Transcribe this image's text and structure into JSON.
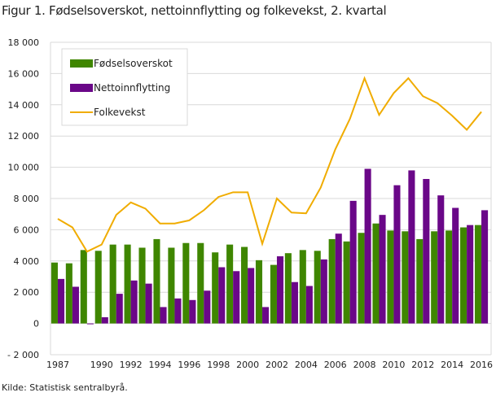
{
  "chart_data": {
    "type": "bar",
    "title": "Figur 1. Fødselsoverskot, nettoinnflytting og folkevekst, 2. kvartal",
    "source": "Kilde: Statistisk sentralbyrå.",
    "categories": [
      1987,
      1988,
      1989,
      1990,
      1991,
      1992,
      1993,
      1994,
      1995,
      1996,
      1997,
      1998,
      1999,
      2000,
      2001,
      2002,
      2003,
      2004,
      2005,
      2006,
      2007,
      2008,
      2009,
      2010,
      2011,
      2012,
      2013,
      2014,
      2015,
      2016
    ],
    "x_tick_labels": [
      "1987",
      "1990",
      "1992",
      "1994",
      "1996",
      "1998",
      "2000",
      "2002",
      "2004",
      "2006",
      "2008",
      "2010",
      "2012",
      "2014",
      "2016"
    ],
    "y_tick_labels": [
      "- 2 000",
      "0",
      "2 000",
      "4 000",
      "6 000",
      "8 000",
      "10 000",
      "12 000",
      "14 000",
      "16 000",
      "18 000"
    ],
    "ylim": [
      -2000,
      18000
    ],
    "grid": true,
    "legend": "top-left",
    "series": [
      {
        "name": "Fødselsoverskot",
        "type": "bar",
        "color": "#3f8600",
        "values": [
          3900,
          3850,
          4700,
          4650,
          5050,
          5050,
          4850,
          5400,
          4850,
          5150,
          5150,
          4550,
          5050,
          4900,
          4050,
          3750,
          4500,
          4700,
          4650,
          5400,
          5250,
          5800,
          6400,
          5950,
          5900,
          5400,
          5900,
          5950,
          6150,
          6300
        ]
      },
      {
        "name": "Nettoinnflytting",
        "type": "bar",
        "color": "#6a0788",
        "values": [
          2850,
          2350,
          -50,
          400,
          1900,
          2750,
          2550,
          1050,
          1600,
          1500,
          2100,
          3600,
          3350,
          3550,
          1050,
          4300,
          2650,
          2400,
          4100,
          5750,
          7850,
          9900,
          6950,
          8850,
          9800,
          9250,
          8200,
          7400,
          6300,
          7250
        ]
      },
      {
        "name": "Folkevekst",
        "type": "line",
        "color": "#f0ac00",
        "values": [
          6700,
          6150,
          4600,
          5050,
          6950,
          7750,
          7350,
          6400,
          6400,
          6600,
          7250,
          8100,
          8400,
          8400,
          5100,
          8000,
          7100,
          7050,
          8700,
          11150,
          13100,
          15700,
          13350,
          14750,
          15700,
          14550,
          14100,
          13300,
          12400,
          13550
        ]
      }
    ]
  }
}
